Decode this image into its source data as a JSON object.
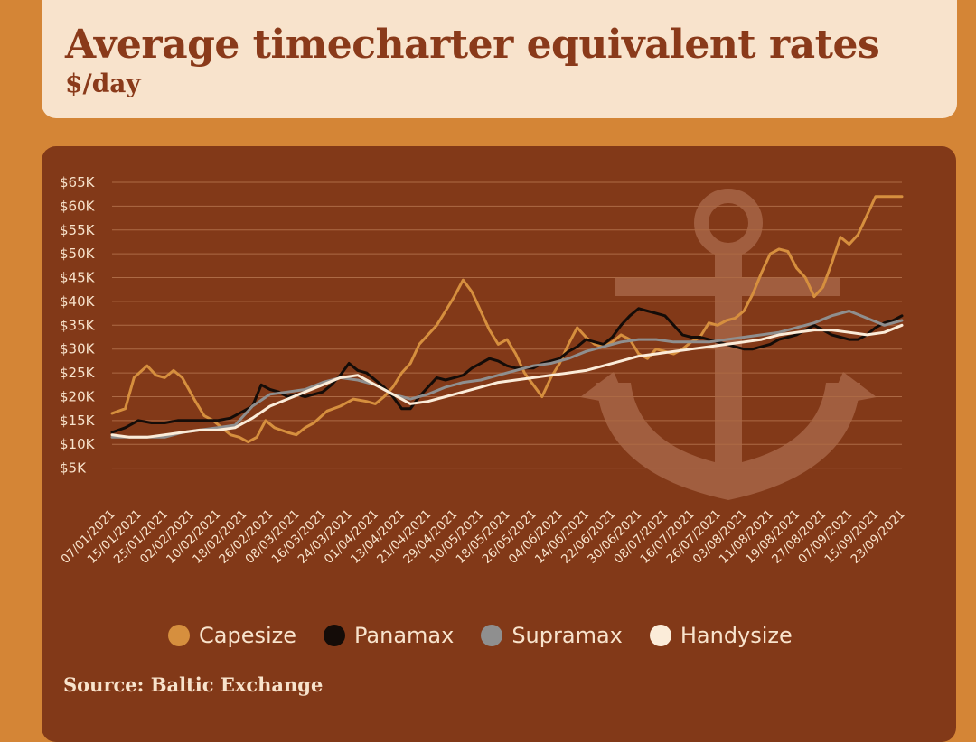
{
  "header": {
    "title": "Average timecharter equivalent rates",
    "subtitle": "$/day"
  },
  "footer": {
    "source": "Source: Baltic Exchange"
  },
  "colors": {
    "page_bg": "#d48536",
    "card_bg": "#823918",
    "capesize": "#d68f3e",
    "panamax": "#140c08",
    "supramax": "#8f8f8f",
    "handysize": "#fbecd9",
    "text": "#f8e3cc",
    "grid": "#ad6a45",
    "anchor": "#a15e3f"
  },
  "decor": {
    "anchor_icon": "anchor-icon"
  },
  "chart_data": {
    "type": "line",
    "title": "Average timecharter equivalent rates",
    "subtitle": "$/day",
    "xlabel": "",
    "ylabel": "",
    "ylim": [
      0,
      65000
    ],
    "y_ticks": [
      5000,
      10000,
      15000,
      20000,
      25000,
      30000,
      35000,
      40000,
      45000,
      50000,
      55000,
      60000,
      65000
    ],
    "y_tick_labels": [
      "$5K",
      "$10K",
      "$15K",
      "$20K",
      "$25K",
      "$30K",
      "$35K",
      "$40K",
      "$45K",
      "$50K",
      "$55K",
      "$60K",
      "$65K"
    ],
    "grid": true,
    "legend_position": "bottom",
    "x_tick_labels": [
      "07/01/2021",
      "15/01/2021",
      "25/01/2021",
      "02/02/2021",
      "10/02/2021",
      "18/02/2021",
      "26/02/2021",
      "08/03/2021",
      "16/03/2021",
      "24/03/2021",
      "01/04/2021",
      "13/04/2021",
      "21/04/2021",
      "29/04/2021",
      "10/05/2021",
      "18/05/2021",
      "26/05/2021",
      "04/06/2021",
      "14/06/2021",
      "22/06/2021",
      "30/06/2021",
      "08/07/2021",
      "16/07/2021",
      "26/07/2021",
      "03/08/2021",
      "11/08/2021",
      "19/08/2021",
      "27/08/2021",
      "07/09/2021",
      "15/09/2021",
      "23/09/2021"
    ],
    "x_tick_index": [
      0,
      6,
      12,
      18,
      24,
      30,
      36,
      42,
      48,
      54,
      60,
      66,
      72,
      78,
      84,
      90,
      96,
      102,
      108,
      114,
      120,
      126,
      132,
      138,
      144,
      150,
      156,
      162,
      168,
      174,
      180
    ],
    "x_max": 180,
    "series": [
      {
        "name": "Capesize",
        "key": "capesize",
        "x": [
          0,
          3,
          5,
          8,
          10,
          12,
          14,
          16,
          19,
          21,
          23,
          25,
          27,
          29,
          31,
          33,
          35,
          37,
          40,
          42,
          44,
          46,
          49,
          52,
          55,
          58,
          60,
          62,
          64,
          66,
          68,
          70,
          72,
          74,
          76,
          78,
          80,
          82,
          84,
          86,
          88,
          90,
          92,
          94,
          96,
          98,
          100,
          102,
          104,
          106,
          108,
          110,
          112,
          114,
          116,
          118,
          120,
          122,
          124,
          126,
          128,
          130,
          132,
          134,
          136,
          138,
          140,
          142,
          144,
          146,
          148,
          150,
          152,
          154,
          156,
          158,
          160,
          162,
          164,
          166,
          168,
          170,
          172,
          174,
          176,
          178,
          180
        ],
        "y": [
          16500,
          17500,
          24000,
          26500,
          24500,
          24000,
          25500,
          24000,
          19000,
          16000,
          15000,
          13500,
          12000,
          11500,
          10500,
          11500,
          15000,
          13500,
          12500,
          12000,
          13500,
          14500,
          17000,
          18000,
          19500,
          19000,
          18500,
          20000,
          22000,
          25000,
          27000,
          31000,
          33000,
          35000,
          38000,
          41000,
          44500,
          42000,
          38000,
          34000,
          31000,
          32000,
          29000,
          25000,
          22500,
          20000,
          24000,
          27000,
          31000,
          34500,
          32500,
          31000,
          30500,
          31500,
          33000,
          32000,
          29000,
          28000,
          30000,
          29500,
          29000,
          30000,
          31500,
          32500,
          35500,
          35000,
          36000,
          36500,
          38000,
          41500,
          46000,
          50000,
          51000,
          50500,
          47000,
          45000,
          41000,
          43000,
          48000,
          53500,
          52000,
          54000,
          58000,
          62000,
          62000,
          62000,
          62000
        ]
      },
      {
        "name": "Panamax",
        "key": "panamax",
        "x": [
          0,
          3,
          6,
          9,
          12,
          15,
          18,
          21,
          24,
          27,
          30,
          32,
          34,
          36,
          38,
          40,
          42,
          44,
          46,
          48,
          50,
          52,
          54,
          56,
          58,
          60,
          62,
          64,
          66,
          68,
          70,
          72,
          74,
          76,
          78,
          80,
          82,
          84,
          86,
          88,
          90,
          92,
          94,
          96,
          98,
          100,
          102,
          104,
          106,
          108,
          110,
          112,
          114,
          116,
          118,
          120,
          122,
          124,
          126,
          128,
          130,
          132,
          134,
          136,
          138,
          140,
          142,
          144,
          146,
          148,
          150,
          152,
          154,
          156,
          158,
          160,
          162,
          164,
          166,
          168,
          170,
          172,
          174,
          176,
          178,
          180
        ],
        "y": [
          12500,
          13500,
          15000,
          14500,
          14500,
          15000,
          15000,
          15000,
          15000,
          15500,
          17000,
          18000,
          22500,
          21500,
          21000,
          20000,
          20500,
          20000,
          20500,
          21000,
          22500,
          24500,
          27000,
          25500,
          25000,
          23500,
          22000,
          20000,
          17500,
          17500,
          20000,
          22000,
          24000,
          23500,
          24000,
          24500,
          26000,
          27000,
          28000,
          27500,
          26500,
          26000,
          26000,
          26000,
          27000,
          27500,
          28000,
          29500,
          30500,
          32000,
          31500,
          31000,
          32500,
          35000,
          37000,
          38500,
          38000,
          37500,
          37000,
          35000,
          33000,
          32500,
          32500,
          32000,
          31500,
          31000,
          30500,
          30000,
          30000,
          30500,
          31000,
          32000,
          32500,
          33000,
          34000,
          35000,
          34000,
          33000,
          32500,
          32000,
          32000,
          33000,
          34500,
          35500,
          36000,
          37000
        ]
      },
      {
        "name": "Supramax",
        "key": "supramax",
        "x": [
          0,
          4,
          8,
          12,
          16,
          20,
          24,
          28,
          32,
          36,
          40,
          44,
          48,
          52,
          56,
          60,
          64,
          68,
          72,
          76,
          80,
          84,
          88,
          92,
          96,
          100,
          104,
          108,
          112,
          116,
          120,
          124,
          128,
          132,
          136,
          140,
          144,
          148,
          152,
          156,
          160,
          164,
          168,
          172,
          176,
          180
        ],
        "y": [
          11500,
          11500,
          11500,
          11500,
          12500,
          13000,
          13500,
          14000,
          18000,
          20500,
          21000,
          21500,
          23000,
          24000,
          23500,
          22500,
          20500,
          19500,
          20500,
          22000,
          23000,
          23500,
          24500,
          25500,
          26500,
          27000,
          28000,
          29500,
          30500,
          31500,
          32000,
          32000,
          31500,
          31500,
          31500,
          32000,
          32500,
          33000,
          33500,
          34500,
          35500,
          37000,
          38000,
          36500,
          35000,
          36000
        ]
      },
      {
        "name": "Handysize",
        "key": "handysize",
        "x": [
          0,
          4,
          8,
          12,
          16,
          20,
          24,
          28,
          32,
          36,
          40,
          44,
          48,
          52,
          56,
          60,
          64,
          68,
          72,
          76,
          80,
          84,
          88,
          92,
          96,
          100,
          104,
          108,
          112,
          116,
          120,
          124,
          128,
          132,
          136,
          140,
          144,
          148,
          152,
          156,
          160,
          164,
          168,
          172,
          176,
          180
        ],
        "y": [
          12000,
          11500,
          11500,
          12000,
          12500,
          13000,
          13000,
          13500,
          15500,
          18000,
          19500,
          21000,
          22500,
          24000,
          24500,
          22500,
          20500,
          18500,
          19000,
          20000,
          21000,
          22000,
          23000,
          23500,
          24000,
          24500,
          25000,
          25500,
          26500,
          27500,
          28500,
          29000,
          29500,
          30000,
          30500,
          31000,
          31500,
          32000,
          33000,
          33500,
          34000,
          34000,
          33500,
          33000,
          33500,
          35000
        ]
      }
    ]
  }
}
